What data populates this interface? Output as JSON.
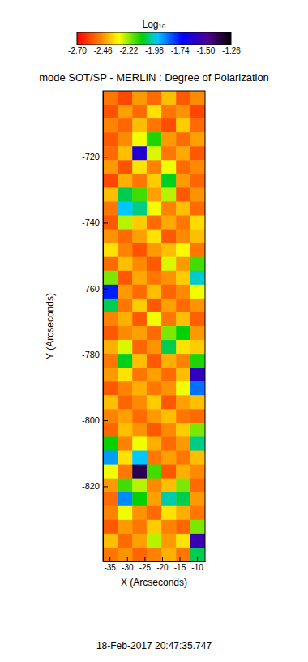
{
  "chart_data": {
    "type": "heatmap",
    "title": "mode SOT/SP - MERLIN : Degree of Polarization",
    "colorbar_title": "Log₁₀",
    "xlabel": "X (Arcseconds)",
    "ylabel": "Y (Arcseconds)",
    "annotation": "18-Feb-2017 20:47:35.747",
    "xlim": [
      -36.9,
      -7.7
    ],
    "ylim": [
      -842.8,
      -700
    ],
    "xticks": [
      -35,
      -30,
      -25,
      -20,
      -15,
      -10
    ],
    "yticks": [
      -820,
      -800,
      -780,
      -760,
      -740,
      -720
    ],
    "zlim": [
      -2.7,
      -1.26
    ],
    "zticks": [
      {
        "value": -2.7,
        "label": "-2.70"
      },
      -2.46,
      -2.22,
      -1.98,
      -1.74,
      {
        "value": -1.5,
        "label": "-1.50"
      },
      -1.26
    ],
    "x_edges": [
      -36.9,
      -32.7,
      -28.5,
      -24.4,
      -20.2,
      -16.0,
      -11.9,
      -7.7
    ],
    "y_edges": [
      -700,
      -704.2,
      -708.4,
      -712.6,
      -716.8,
      -721,
      -725.2,
      -729.4,
      -733.6,
      -737.8,
      -742,
      -746.2,
      -750.4,
      -754.6,
      -758.8,
      -763,
      -767.2,
      -771.4,
      -775.6,
      -779.8,
      -784,
      -788.2,
      -792.4,
      -796.6,
      -800.8,
      -805,
      -809.2,
      -813.4,
      -817.6,
      -821.8,
      -826,
      -830.2,
      -834.4,
      -838.6,
      -842.8
    ],
    "z": [
      [
        -2.5,
        -2.58,
        -2.45,
        -2.52,
        -2.4,
        -2.55,
        -2.47
      ],
      [
        -2.56,
        -2.44,
        -2.52,
        -2.35,
        -2.5,
        -2.46,
        -2.58
      ],
      [
        -2.48,
        -2.53,
        -2.4,
        -2.5,
        -2.57,
        -2.38,
        -2.52
      ],
      [
        -2.55,
        -2.47,
        -2.3,
        -2.12,
        -2.45,
        -2.52,
        -2.44
      ],
      [
        -2.52,
        -2.4,
        -1.62,
        -2.28,
        -2.5,
        -2.43,
        -2.55
      ],
      [
        -2.45,
        -2.56,
        -2.35,
        -2.48,
        -2.3,
        -2.52,
        -2.47
      ],
      [
        -2.58,
        -2.42,
        -2.5,
        -2.38,
        -2.08,
        -2.45,
        -2.53
      ],
      [
        -2.4,
        -2.05,
        -2.15,
        -2.44,
        -2.25,
        -2.55,
        -2.46
      ],
      [
        -2.5,
        -1.95,
        -2.02,
        -2.3,
        -2.48,
        -2.4,
        -2.52
      ],
      [
        -2.55,
        -2.25,
        -2.38,
        -2.52,
        -2.43,
        -2.5,
        -2.36
      ],
      [
        -2.46,
        -2.52,
        -2.44,
        -2.35,
        -2.55,
        -2.47,
        -2.4
      ],
      [
        -2.35,
        -2.48,
        -2.56,
        -2.45,
        -2.4,
        -2.32,
        -2.5
      ],
      [
        -2.52,
        -2.4,
        -2.47,
        -2.55,
        -2.28,
        -2.45,
        -2.15
      ],
      [
        -2.2,
        -2.55,
        -2.43,
        -2.5,
        -2.46,
        -2.38,
        -1.98
      ],
      [
        -1.75,
        -2.45,
        -2.52,
        -2.4,
        -2.53,
        -2.47,
        -2.3
      ],
      [
        -2.05,
        -2.5,
        -2.38,
        -2.55,
        -2.44,
        -2.52,
        -2.46
      ],
      [
        -2.48,
        -2.42,
        -2.55,
        -2.3,
        -2.5,
        -2.4,
        -2.54
      ],
      [
        -2.55,
        -2.47,
        -2.44,
        -2.52,
        -2.2,
        -2.1,
        -2.45
      ],
      [
        -2.42,
        -2.28,
        -2.53,
        -2.46,
        -2.05,
        -2.35,
        -2.38
      ],
      [
        -2.5,
        -2.08,
        -2.4,
        -2.55,
        -2.42,
        -2.48,
        -2.12
      ],
      [
        -2.45,
        -2.35,
        -2.5,
        -2.44,
        -2.52,
        -2.4,
        -1.58
      ],
      [
        -2.55,
        -2.48,
        -2.42,
        -2.5,
        -2.46,
        -2.3,
        -1.85
      ],
      [
        -2.4,
        -2.53,
        -2.47,
        -2.38,
        -2.55,
        -2.44,
        -2.4
      ],
      [
        -2.48,
        -2.44,
        -2.52,
        -2.45,
        -2.4,
        -2.5,
        -2.52
      ],
      [
        -2.53,
        -2.4,
        -2.46,
        -2.55,
        -2.47,
        -2.38,
        -2.2
      ],
      [
        -2.1,
        -2.48,
        -2.3,
        -2.42,
        -2.52,
        -2.45,
        -2.02
      ],
      [
        -1.9,
        -2.35,
        -1.95,
        -2.5,
        -2.44,
        -2.5,
        -2.4
      ],
      [
        -2.3,
        -2.5,
        -1.38,
        -2.15,
        -2.55,
        -2.42,
        -2.47
      ],
      [
        -2.45,
        -2.15,
        -2.25,
        -2.47,
        -2.4,
        -2.2,
        -2.52
      ],
      [
        -2.52,
        -1.88,
        -2.1,
        -2.44,
        -2.0,
        -2.05,
        -2.45
      ],
      [
        -2.48,
        -2.3,
        -2.46,
        -2.52,
        -2.35,
        -2.42,
        -2.5
      ],
      [
        -2.55,
        -2.45,
        -2.5,
        -2.38,
        -2.48,
        -2.53,
        -2.2
      ],
      [
        -2.4,
        -2.52,
        -2.44,
        -2.25,
        -2.45,
        -2.35,
        -1.55
      ],
      [
        -2.5,
        -2.46,
        -2.53,
        -2.48,
        -2.42,
        -2.5,
        -2.05
      ]
    ]
  }
}
